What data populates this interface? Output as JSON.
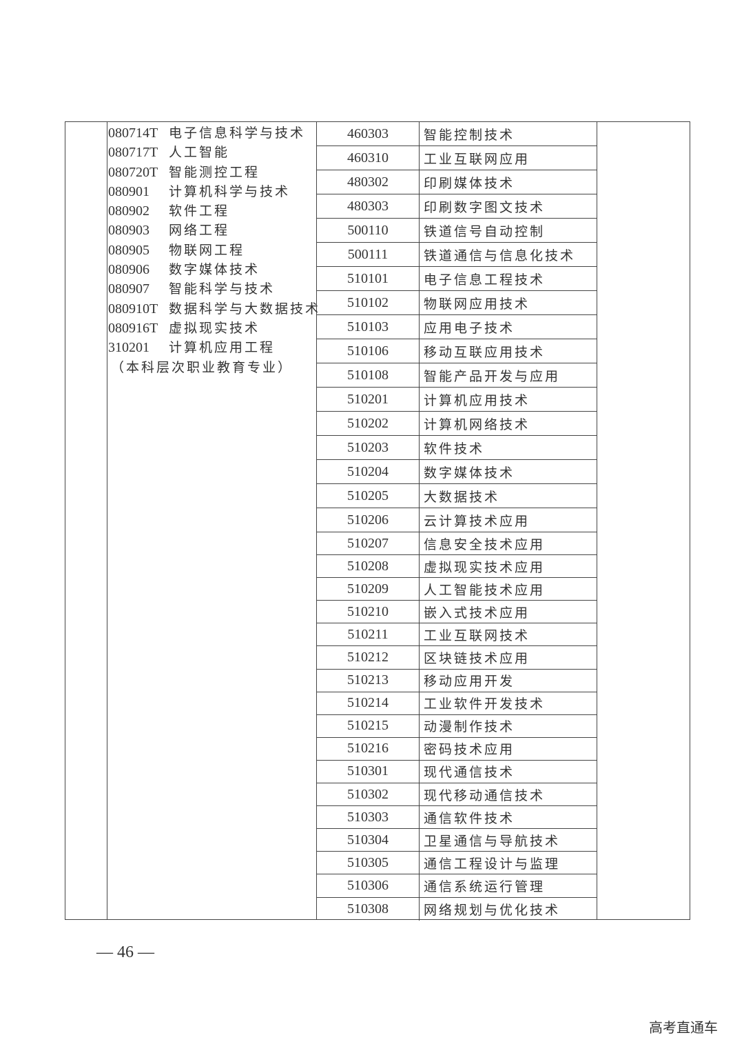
{
  "left_column": [
    {
      "code": "080714T",
      "name": "电子信息科学与技术"
    },
    {
      "code": "080717T",
      "name": "人工智能"
    },
    {
      "code": "080720T",
      "name": "智能测控工程"
    },
    {
      "code": "080901",
      "name": "计算机科学与技术"
    },
    {
      "code": "080902",
      "name": "软件工程"
    },
    {
      "code": "080903",
      "name": "网络工程"
    },
    {
      "code": "080905",
      "name": "物联网工程"
    },
    {
      "code": "080906",
      "name": "数字媒体技术"
    },
    {
      "code": "080907",
      "name": "智能科学与技术"
    },
    {
      "code": "080910T",
      "name": "数据科学与大数据技术"
    },
    {
      "code": "080916T",
      "name": "虚拟现实技术"
    },
    {
      "code": "310201",
      "name": "计算机应用工程"
    }
  ],
  "left_note": "（本科层次职业教育专业）",
  "right_rows": [
    {
      "code": "460303",
      "name": "智能控制技术"
    },
    {
      "code": "460310",
      "name": "工业互联网应用"
    },
    {
      "code": "480302",
      "name": "印刷媒体技术"
    },
    {
      "code": "480303",
      "name": "印刷数字图文技术"
    },
    {
      "code": "500110",
      "name": "铁道信号自动控制"
    },
    {
      "code": "500111",
      "name": "铁道通信与信息化技术"
    },
    {
      "code": "510101",
      "name": "电子信息工程技术"
    },
    {
      "code": "510102",
      "name": "物联网应用技术"
    },
    {
      "code": "510103",
      "name": "应用电子技术"
    },
    {
      "code": "510106",
      "name": "移动互联应用技术"
    },
    {
      "code": "510108",
      "name": "智能产品开发与应用"
    },
    {
      "code": "510201",
      "name": "计算机应用技术"
    },
    {
      "code": "510202",
      "name": "计算机网络技术"
    },
    {
      "code": "510203",
      "name": "软件技术"
    },
    {
      "code": "510204",
      "name": "数字媒体技术"
    },
    {
      "code": "510205",
      "name": "大数据技术"
    },
    {
      "code": "510206",
      "name": "云计算技术应用"
    },
    {
      "code": "510207",
      "name": "信息安全技术应用"
    },
    {
      "code": "510208",
      "name": "虚拟现实技术应用"
    },
    {
      "code": "510209",
      "name": "人工智能技术应用"
    },
    {
      "code": "510210",
      "name": "嵌入式技术应用"
    },
    {
      "code": "510211",
      "name": "工业互联网技术"
    },
    {
      "code": "510212",
      "name": "区块链技术应用"
    },
    {
      "code": "510213",
      "name": "移动应用开发"
    },
    {
      "code": "510214",
      "name": "工业软件开发技术"
    },
    {
      "code": "510215",
      "name": "动漫制作技术"
    },
    {
      "code": "510216",
      "name": "密码技术应用"
    },
    {
      "code": "510301",
      "name": "现代通信技术"
    },
    {
      "code": "510302",
      "name": "现代移动通信技术"
    },
    {
      "code": "510303",
      "name": "通信软件技术"
    },
    {
      "code": "510304",
      "name": "卫星通信与导航技术"
    },
    {
      "code": "510305",
      "name": "通信工程设计与监理"
    },
    {
      "code": "510306",
      "name": "通信系统运行管理"
    },
    {
      "code": "510308",
      "name": "网络规划与优化技术"
    }
  ],
  "page_number": "— 46 —",
  "watermark": "高考直通车"
}
